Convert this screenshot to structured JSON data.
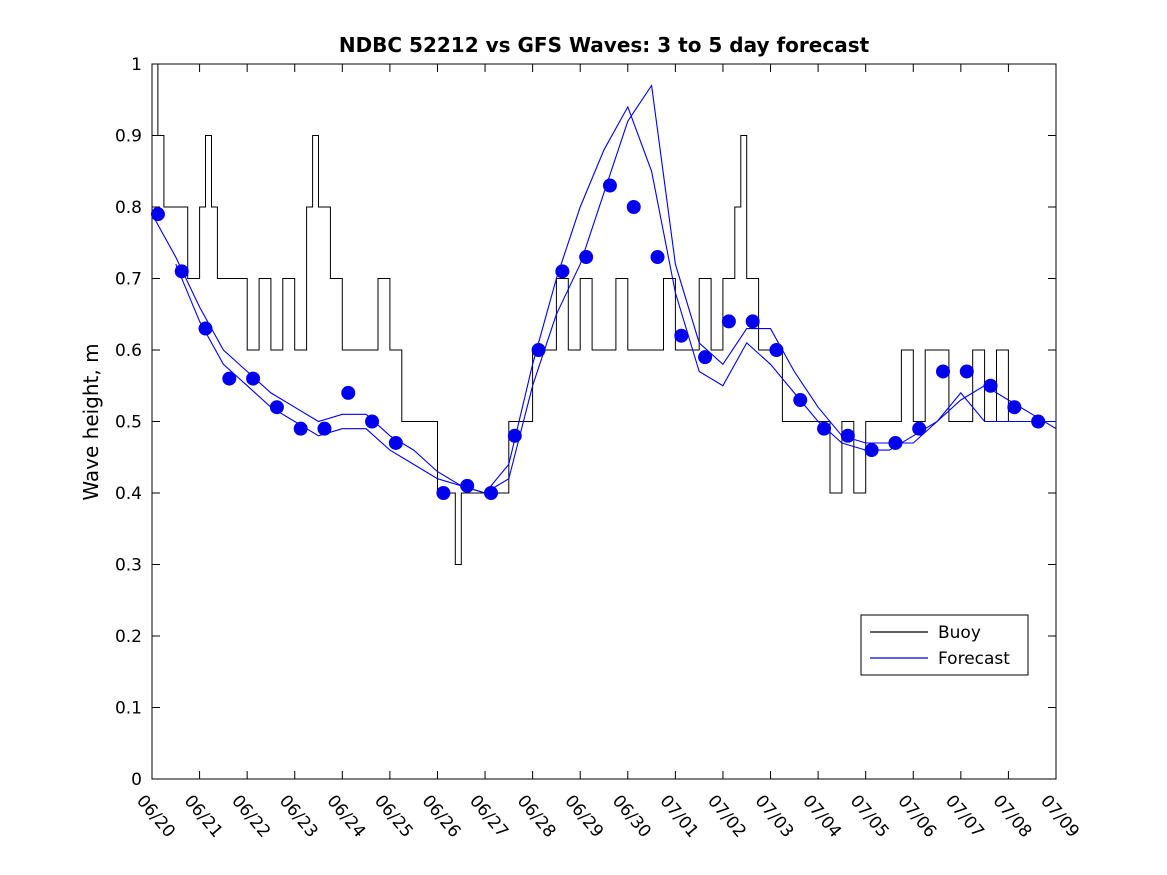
{
  "chart_data": {
    "type": "line",
    "title": "NDBC 52212 vs GFS Waves: 3 to 5 day forecast",
    "xlabel": "",
    "ylabel": "Wave height, m",
    "xlim": [
      "06/20",
      "07/09"
    ],
    "ylim": [
      0,
      1
    ],
    "y_ticks": [
      "0",
      "0.1",
      "0.2",
      "0.3",
      "0.4",
      "0.5",
      "0.6",
      "0.7",
      "0.8",
      "0.9",
      "1"
    ],
    "x_ticks": [
      "06/20",
      "06/21",
      "06/22",
      "06/23",
      "06/24",
      "06/25",
      "06/26",
      "06/27",
      "06/28",
      "06/29",
      "06/30",
      "07/01",
      "07/02",
      "07/03",
      "07/04",
      "07/05",
      "07/06",
      "07/07",
      "07/08",
      "07/09"
    ],
    "grid": false,
    "legend": {
      "placement": "lower-right",
      "entries": [
        "Buoy",
        "Forecast"
      ]
    },
    "colors": {
      "buoy": "#000000",
      "forecast": "#0000ee",
      "markers": "#0000ee"
    },
    "series": [
      {
        "name": "Buoy",
        "style": "black-step-line",
        "x": [
          "06/20 00:00",
          "06/20 03:00",
          "06/20 06:00",
          "06/20 12:00",
          "06/20 18:00",
          "06/21 00:00",
          "06/21 03:00",
          "06/21 06:00",
          "06/21 09:00",
          "06/21 12:00",
          "06/21 18:00",
          "06/22 00:00",
          "06/22 06:00",
          "06/22 12:00",
          "06/22 18:00",
          "06/23 00:00",
          "06/23 06:00",
          "06/23 09:00",
          "06/23 12:00",
          "06/23 18:00",
          "06/24 00:00",
          "06/24 06:00",
          "06/24 12:00",
          "06/24 18:00",
          "06/25 00:00",
          "06/25 06:00",
          "06/25 12:00",
          "06/25 18:00",
          "06/26 00:00",
          "06/26 06:00",
          "06/26 09:00",
          "06/26 12:00",
          "06/26 18:00",
          "06/27 00:00",
          "06/27 06:00",
          "06/27 12:00",
          "06/27 18:00",
          "06/28 00:00",
          "06/28 06:00",
          "06/28 12:00",
          "06/28 18:00",
          "06/29 00:00",
          "06/29 06:00",
          "06/29 12:00",
          "06/29 18:00",
          "06/30 00:00",
          "06/30 06:00",
          "06/30 12:00",
          "06/30 18:00",
          "07/01 00:00",
          "07/01 06:00",
          "07/01 12:00",
          "07/01 18:00",
          "07/02 00:00",
          "07/02 06:00",
          "07/02 09:00",
          "07/02 12:00",
          "07/02 18:00",
          "07/03 00:00",
          "07/03 06:00",
          "07/03 12:00",
          "07/03 18:00",
          "07/04 00:00",
          "07/04 06:00",
          "07/04 12:00",
          "07/04 18:00",
          "07/05 00:00",
          "07/05 06:00",
          "07/05 12:00",
          "07/05 18:00",
          "07/06 00:00",
          "07/06 06:00",
          "07/06 12:00",
          "07/06 18:00",
          "07/07 00:00",
          "07/07 06:00",
          "07/07 12:00",
          "07/07 18:00",
          "07/08 00:00",
          "07/08 06:00",
          "07/08 12:00",
          "07/08 18:00",
          "07/09 00:00"
        ],
        "values": [
          1.0,
          0.9,
          0.8,
          0.8,
          0.7,
          0.8,
          0.9,
          0.8,
          0.7,
          0.7,
          0.7,
          0.6,
          0.7,
          0.6,
          0.7,
          0.6,
          0.8,
          0.9,
          0.8,
          0.7,
          0.6,
          0.6,
          0.6,
          0.7,
          0.6,
          0.5,
          0.5,
          0.5,
          0.4,
          0.4,
          0.3,
          0.4,
          0.4,
          0.4,
          0.4,
          0.5,
          0.5,
          0.6,
          0.6,
          0.7,
          0.6,
          0.7,
          0.6,
          0.6,
          0.7,
          0.6,
          0.6,
          0.6,
          0.7,
          0.6,
          0.6,
          0.7,
          0.6,
          0.7,
          0.8,
          0.9,
          0.7,
          0.6,
          0.6,
          0.5,
          0.5,
          0.5,
          0.5,
          0.4,
          0.5,
          0.4,
          0.5,
          0.5,
          0.5,
          0.6,
          0.5,
          0.6,
          0.6,
          0.5,
          0.5,
          0.6,
          0.5,
          0.6,
          0.5,
          0.5,
          0.5,
          0.5,
          0.5
        ]
      },
      {
        "name": "Forecast",
        "style": "blue-lines-with-markers",
        "runs": [
          {
            "x": [
              "06/20 00:00",
              "06/20 12:00",
              "06/21 00:00",
              "06/21 12:00",
              "06/22 00:00",
              "06/22 12:00",
              "06/23 00:00",
              "06/23 12:00",
              "06/24 00:00",
              "06/24 12:00",
              "06/25 00:00",
              "06/25 12:00",
              "06/26 00:00",
              "06/26 12:00",
              "06/27 00:00",
              "06/27 12:00",
              "06/28 00:00",
              "06/28 12:00",
              "06/29 00:00",
              "06/29 12:00",
              "06/30 00:00",
              "06/30 12:00",
              "07/01 00:00",
              "07/01 12:00",
              "07/02 00:00",
              "07/02 12:00",
              "07/03 00:00",
              "07/03 12:00",
              "07/04 00:00",
              "07/04 12:00",
              "07/05 00:00",
              "07/05 12:00",
              "07/06 00:00",
              "07/06 12:00",
              "07/07 00:00",
              "07/07 12:00",
              "07/08 00:00",
              "07/08 12:00",
              "07/09 00:00"
            ],
            "values": [
              0.79,
              0.73,
              0.66,
              0.6,
              0.57,
              0.54,
              0.52,
              0.5,
              0.51,
              0.51,
              0.48,
              0.46,
              0.43,
              0.41,
              0.4,
              0.42,
              0.55,
              0.65,
              0.72,
              0.82,
              0.92,
              0.97,
              0.72,
              0.61,
              0.58,
              0.63,
              0.63,
              0.57,
              0.52,
              0.48,
              0.47,
              0.47,
              0.47,
              0.5,
              0.53,
              0.55,
              0.53,
              0.51,
              0.49
            ]
          },
          {
            "x": [
              "06/20 12:00",
              "06/21 00:00",
              "06/21 12:00",
              "06/22 00:00",
              "06/22 12:00",
              "06/23 00:00",
              "06/23 12:00",
              "06/24 00:00",
              "06/24 12:00",
              "06/25 00:00",
              "06/25 12:00",
              "06/26 00:00",
              "06/26 12:00",
              "06/27 00:00",
              "06/27 12:00",
              "06/28 00:00",
              "06/28 12:00",
              "06/29 00:00",
              "06/29 12:00",
              "06/30 00:00",
              "06/30 12:00",
              "07/01 00:00",
              "07/01 12:00",
              "07/02 00:00",
              "07/02 12:00",
              "07/03 00:00",
              "07/03 12:00",
              "07/04 00:00",
              "07/04 12:00",
              "07/05 00:00",
              "07/05 12:00",
              "07/06 00:00",
              "07/06 12:00",
              "07/07 00:00",
              "07/07 12:00",
              "07/08 00:00",
              "07/08 12:00",
              "07/09 00:00"
            ],
            "values": [
              0.72,
              0.64,
              0.58,
              0.55,
              0.52,
              0.5,
              0.48,
              0.49,
              0.49,
              0.46,
              0.44,
              0.42,
              0.41,
              0.4,
              0.44,
              0.58,
              0.7,
              0.8,
              0.88,
              0.94,
              0.85,
              0.68,
              0.57,
              0.55,
              0.61,
              0.58,
              0.54,
              0.5,
              0.47,
              0.46,
              0.46,
              0.48,
              0.5,
              0.54,
              0.5,
              0.5,
              0.5,
              0.5
            ]
          }
        ],
        "markers": {
          "x": [
            "06/20 03:00",
            "06/20 15:00",
            "06/21 03:00",
            "06/21 15:00",
            "06/22 03:00",
            "06/22 15:00",
            "06/23 03:00",
            "06/23 15:00",
            "06/24 03:00",
            "06/24 15:00",
            "06/25 03:00",
            "06/26 03:00",
            "06/26 15:00",
            "06/27 03:00",
            "06/27 15:00",
            "06/28 03:00",
            "06/28 15:00",
            "06/29 03:00",
            "06/29 15:00",
            "06/30 03:00",
            "06/30 15:00",
            "07/01 03:00",
            "07/01 15:00",
            "07/02 03:00",
            "07/02 15:00",
            "07/03 03:00",
            "07/03 15:00",
            "07/04 03:00",
            "07/04 15:00",
            "07/05 03:00",
            "07/05 15:00",
            "07/06 03:00",
            "07/06 15:00",
            "07/07 03:00",
            "07/07 15:00",
            "07/08 03:00",
            "07/08 15:00"
          ],
          "values": [
            0.79,
            0.71,
            0.63,
            0.56,
            0.56,
            0.52,
            0.49,
            0.49,
            0.54,
            0.5,
            0.47,
            0.4,
            0.41,
            0.4,
            0.48,
            0.6,
            0.71,
            0.73,
            0.83,
            0.8,
            0.73,
            0.62,
            0.59,
            0.64,
            0.64,
            0.6,
            0.53,
            0.49,
            0.48,
            0.46,
            0.47,
            0.49,
            0.57,
            0.57,
            0.55,
            0.52,
            0.5
          ]
        }
      }
    ]
  }
}
